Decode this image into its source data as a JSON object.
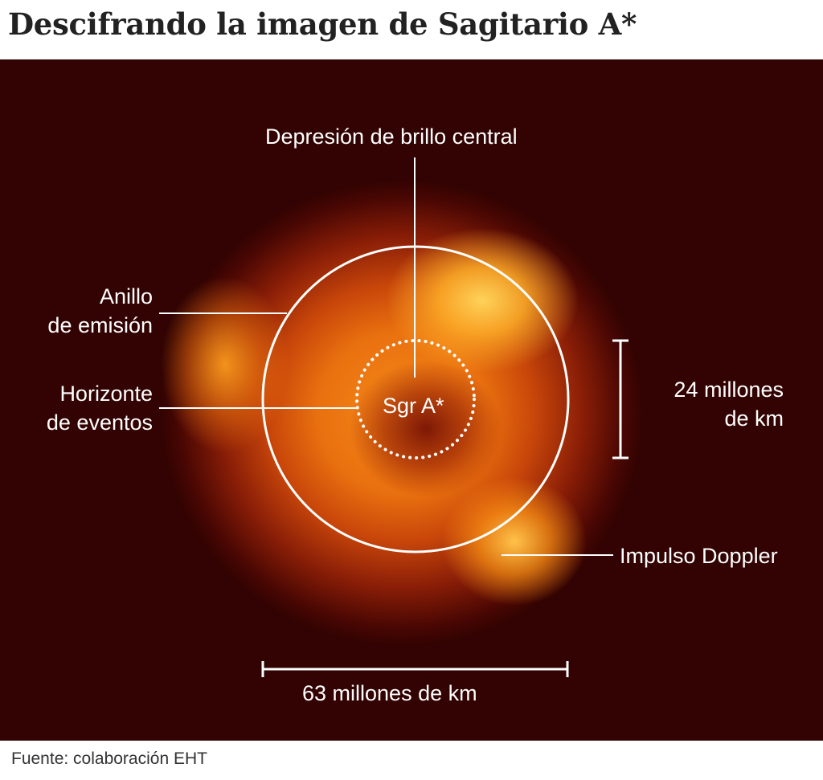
{
  "title": "Descifrando la imagen de Sagitario A*",
  "labels": {
    "central_depression": "Depresión de brillo central",
    "emission_ring_line1": "Anillo",
    "emission_ring_line2": "de emisión",
    "event_horizon_line1": "Horizonte",
    "event_horizon_line2": "de eventos",
    "object_name": "Sgr A*",
    "scale_vertical_line1": "24 millones",
    "scale_vertical_line2": "de km",
    "doppler": "Impulso Doppler",
    "scale_horizontal": "63 millones de km"
  },
  "source": "Fuente: colaboración EHT"
}
